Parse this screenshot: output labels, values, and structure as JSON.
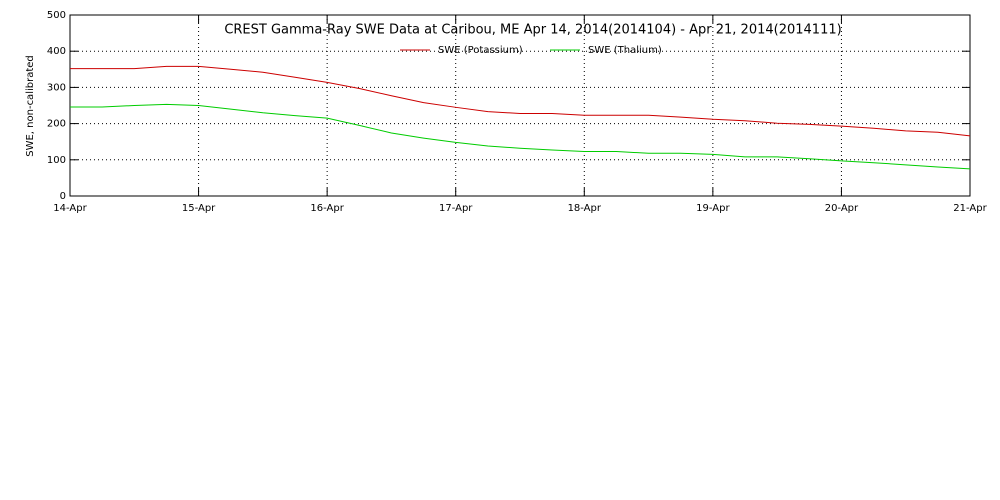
{
  "chart_data": {
    "type": "line",
    "title": "CREST Gamma-Ray SWE Data at Caribou, ME   Apr 14, 2014(2014104) - Apr 21, 2014(2014111)",
    "y_label": "SWE, non-calibrated",
    "x": [
      14,
      14.25,
      14.5,
      14.75,
      15,
      15.25,
      15.5,
      15.75,
      16,
      16.25,
      16.5,
      16.75,
      17,
      17.25,
      17.5,
      17.75,
      18,
      18.25,
      18.5,
      18.75,
      19,
      19.25,
      19.5,
      19.75,
      20,
      20.25,
      20.5,
      20.75,
      21
    ],
    "series": [
      {
        "name": "SWE (Potassium)",
        "color": "#cc0000",
        "values": [
          352,
          352,
          352,
          358,
          358,
          350,
          342,
          328,
          314,
          297,
          277,
          258,
          245,
          233,
          228,
          228,
          223,
          223,
          223,
          218,
          212,
          208,
          201,
          198,
          193,
          187,
          180,
          176,
          166
        ]
      },
      {
        "name": "SWE (Thalium)",
        "color": "#00cc00",
        "values": [
          246,
          246,
          250,
          253,
          250,
          240,
          230,
          222,
          215,
          195,
          174,
          160,
          148,
          138,
          132,
          127,
          123,
          123,
          118,
          118,
          115,
          108,
          108,
          103,
          97,
          92,
          86,
          80,
          75
        ]
      }
    ],
    "xlim": [
      14,
      21
    ],
    "xticks": [
      {
        "value": 14,
        "label": "14-Apr"
      },
      {
        "value": 15,
        "label": "15-Apr"
      },
      {
        "value": 16,
        "label": "16-Apr"
      },
      {
        "value": 17,
        "label": "17-Apr"
      },
      {
        "value": 18,
        "label": "18-Apr"
      },
      {
        "value": 19,
        "label": "19-Apr"
      },
      {
        "value": 20,
        "label": "20-Apr"
      },
      {
        "value": 21,
        "label": "21-Apr"
      }
    ],
    "ylim": [
      0,
      500
    ],
    "yticks": [
      0,
      100,
      200,
      300,
      400,
      500
    ],
    "grid": true
  }
}
